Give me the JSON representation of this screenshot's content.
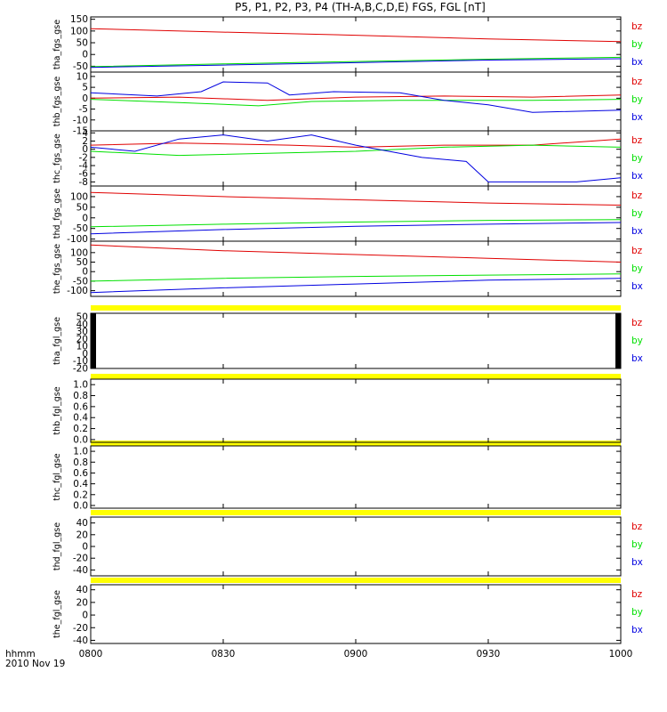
{
  "title": "P5, P1, P2, P3, P4 (TH-A,B,C,D,E) FGS, FGL [nT]",
  "footer": {
    "label": "hhmm",
    "date": "2010 Nov 19"
  },
  "colors": {
    "bz": "#e00000",
    "by": "#00e000",
    "bx": "#0000e0",
    "gap_bar": "#ffff00",
    "axis": "#000000"
  },
  "chart_data": [
    {
      "type": "line",
      "ylabel": "tha_fgs_gse",
      "ylim": [
        -75,
        160
      ],
      "yticks": [
        "150",
        "100",
        "50",
        "0",
        "-50"
      ],
      "x": [
        "0800",
        "0830",
        "0900",
        "0930",
        "1000"
      ],
      "legend": [
        "bz",
        "by",
        "bx"
      ],
      "series": [
        {
          "name": "bz",
          "points": [
            [
              0,
              110
            ],
            [
              30,
              95
            ],
            [
              60,
              82
            ],
            [
              90,
              66
            ],
            [
              120,
              55
            ]
          ]
        },
        {
          "name": "by",
          "points": [
            [
              0,
              -52
            ],
            [
              30,
              -40
            ],
            [
              60,
              -30
            ],
            [
              90,
              -20
            ],
            [
              120,
              -12
            ]
          ]
        },
        {
          "name": "bx",
          "points": [
            [
              0,
              -55
            ],
            [
              30,
              -45
            ],
            [
              60,
              -35
            ],
            [
              90,
              -24
            ],
            [
              120,
              -18
            ]
          ]
        }
      ]
    },
    {
      "type": "line",
      "ylabel": "thb_fgs_gse",
      "ylim": [
        -15,
        12
      ],
      "yticks": [
        "10",
        "5",
        "0",
        "-5",
        "-10",
        "-15"
      ],
      "x": [
        "0800",
        "0830",
        "0900",
        "0930",
        "1000"
      ],
      "legend": [
        "bz",
        "by",
        "bx"
      ],
      "series": [
        {
          "name": "bz",
          "points": [
            [
              0,
              0
            ],
            [
              20,
              0.5
            ],
            [
              40,
              -1
            ],
            [
              60,
              0.5
            ],
            [
              80,
              1
            ],
            [
              100,
              0.5
            ],
            [
              120,
              1.5
            ]
          ]
        },
        {
          "name": "by",
          "points": [
            [
              0,
              -0.5
            ],
            [
              20,
              -2
            ],
            [
              38,
              -3.5
            ],
            [
              50,
              -1.5
            ],
            [
              70,
              -1
            ],
            [
              100,
              -1
            ],
            [
              120,
              -0.5
            ]
          ]
        },
        {
          "name": "bx",
          "points": [
            [
              0,
              2.5
            ],
            [
              15,
              1
            ],
            [
              25,
              3
            ],
            [
              30,
              7.5
            ],
            [
              40,
              7
            ],
            [
              45,
              1.5
            ],
            [
              55,
              3
            ],
            [
              70,
              2.5
            ],
            [
              80,
              -1
            ],
            [
              90,
              -3
            ],
            [
              100,
              -6.5
            ],
            [
              120,
              -5.5
            ]
          ]
        }
      ]
    },
    {
      "type": "line",
      "ylabel": "thc_fgs_gse",
      "ylim": [
        -9,
        4.5
      ],
      "yticks": [
        "4",
        "2",
        "0",
        "-2",
        "-4",
        "-6",
        "-8"
      ],
      "x": [
        "0800",
        "0830",
        "0900",
        "0930",
        "1000"
      ],
      "legend": [
        "bz",
        "by",
        "bx"
      ],
      "series": [
        {
          "name": "bz",
          "points": [
            [
              0,
              1
            ],
            [
              20,
              1.5
            ],
            [
              45,
              1
            ],
            [
              60,
              0.5
            ],
            [
              80,
              1
            ],
            [
              100,
              1
            ],
            [
              120,
              2.5
            ]
          ]
        },
        {
          "name": "by",
          "points": [
            [
              0,
              -0.5
            ],
            [
              20,
              -1.5
            ],
            [
              40,
              -1
            ],
            [
              60,
              -0.5
            ],
            [
              80,
              0.5
            ],
            [
              100,
              1
            ],
            [
              120,
              0.5
            ]
          ]
        },
        {
          "name": "bx",
          "points": [
            [
              0,
              0.5
            ],
            [
              10,
              -0.5
            ],
            [
              20,
              2.5
            ],
            [
              30,
              3.5
            ],
            [
              40,
              2
            ],
            [
              50,
              3.5
            ],
            [
              60,
              1
            ],
            [
              75,
              -2
            ],
            [
              85,
              -3
            ],
            [
              90,
              -8
            ],
            [
              110,
              -8
            ],
            [
              120,
              -7
            ]
          ]
        }
      ]
    },
    {
      "type": "line",
      "ylabel": "thd_fgs_gse",
      "ylim": [
        -110,
        150
      ],
      "yticks": [
        "100",
        "50",
        "0",
        "-50",
        "-100"
      ],
      "x": [
        "0800",
        "0830",
        "0900",
        "0930",
        "1000"
      ],
      "legend": [
        "bz",
        "by",
        "bx"
      ],
      "series": [
        {
          "name": "bz",
          "points": [
            [
              0,
              120
            ],
            [
              30,
              100
            ],
            [
              60,
              85
            ],
            [
              90,
              70
            ],
            [
              120,
              60
            ]
          ]
        },
        {
          "name": "by",
          "points": [
            [
              0,
              -42
            ],
            [
              30,
              -30
            ],
            [
              60,
              -20
            ],
            [
              90,
              -12
            ],
            [
              120,
              -8
            ]
          ]
        },
        {
          "name": "bx",
          "points": [
            [
              0,
              -75
            ],
            [
              30,
              -55
            ],
            [
              60,
              -40
            ],
            [
              90,
              -30
            ],
            [
              120,
              -22
            ]
          ]
        }
      ]
    },
    {
      "type": "line",
      "ylabel": "the_fgs_gse",
      "ylim": [
        -130,
        160
      ],
      "yticks": [
        "100",
        "50",
        "0",
        "-50",
        "-100"
      ],
      "x": [
        "0800",
        "0830",
        "0900",
        "0930",
        "1000"
      ],
      "legend": [
        "bz",
        "by",
        "bx"
      ],
      "series": [
        {
          "name": "bz",
          "points": [
            [
              0,
              140
            ],
            [
              30,
              110
            ],
            [
              60,
              90
            ],
            [
              90,
              70
            ],
            [
              120,
              50
            ]
          ]
        },
        {
          "name": "by",
          "points": [
            [
              0,
              -50
            ],
            [
              30,
              -35
            ],
            [
              60,
              -25
            ],
            [
              90,
              -18
            ],
            [
              120,
              -12
            ]
          ]
        },
        {
          "name": "bx",
          "points": [
            [
              0,
              -110
            ],
            [
              30,
              -85
            ],
            [
              60,
              -65
            ],
            [
              90,
              -45
            ],
            [
              120,
              -35
            ]
          ]
        }
      ]
    },
    {
      "type": "line",
      "ylabel": "tha_fgl_gse",
      "ylim": [
        -20,
        55
      ],
      "yticks": [
        "50",
        "40",
        "30",
        "20",
        "10",
        "0",
        "-10",
        "-20"
      ],
      "x": [
        "0800",
        "0830",
        "0900",
        "0930",
        "1000"
      ],
      "legend": [
        "bz",
        "by",
        "bx"
      ],
      "series": []
    },
    {
      "type": "line",
      "ylabel": "thb_fgl_gse",
      "ylim": [
        -0.05,
        1.1
      ],
      "yticks": [
        "1.0",
        "0.8",
        "0.6",
        "0.4",
        "0.2",
        "0.0"
      ],
      "x": [
        "0800",
        "0830",
        "0900",
        "0930",
        "1000"
      ],
      "legend": [],
      "series": []
    },
    {
      "type": "line",
      "ylabel": "thc_fgl_gse",
      "ylim": [
        -0.05,
        1.1
      ],
      "yticks": [
        "1.0",
        "0.8",
        "0.6",
        "0.4",
        "0.2",
        "0.0"
      ],
      "x": [
        "0800",
        "0830",
        "0900",
        "0930",
        "1000"
      ],
      "legend": [],
      "series": []
    },
    {
      "type": "line",
      "ylabel": "thd_fgl_gse",
      "ylim": [
        -50,
        50
      ],
      "yticks": [
        "40",
        "20",
        "0",
        "-20",
        "-40"
      ],
      "x": [
        "0800",
        "0830",
        "0900",
        "0930",
        "1000"
      ],
      "legend": [
        "bz",
        "by",
        "bx"
      ],
      "series": []
    },
    {
      "type": "line",
      "ylabel": "the_fgl_gse",
      "ylim": [
        -45,
        48
      ],
      "yticks": [
        "40",
        "20",
        "0",
        "-20",
        "-40"
      ],
      "x": [
        "0800",
        "0830",
        "0900",
        "0930",
        "1000"
      ],
      "legend": [
        "bz",
        "by",
        "bx"
      ],
      "series": []
    }
  ]
}
